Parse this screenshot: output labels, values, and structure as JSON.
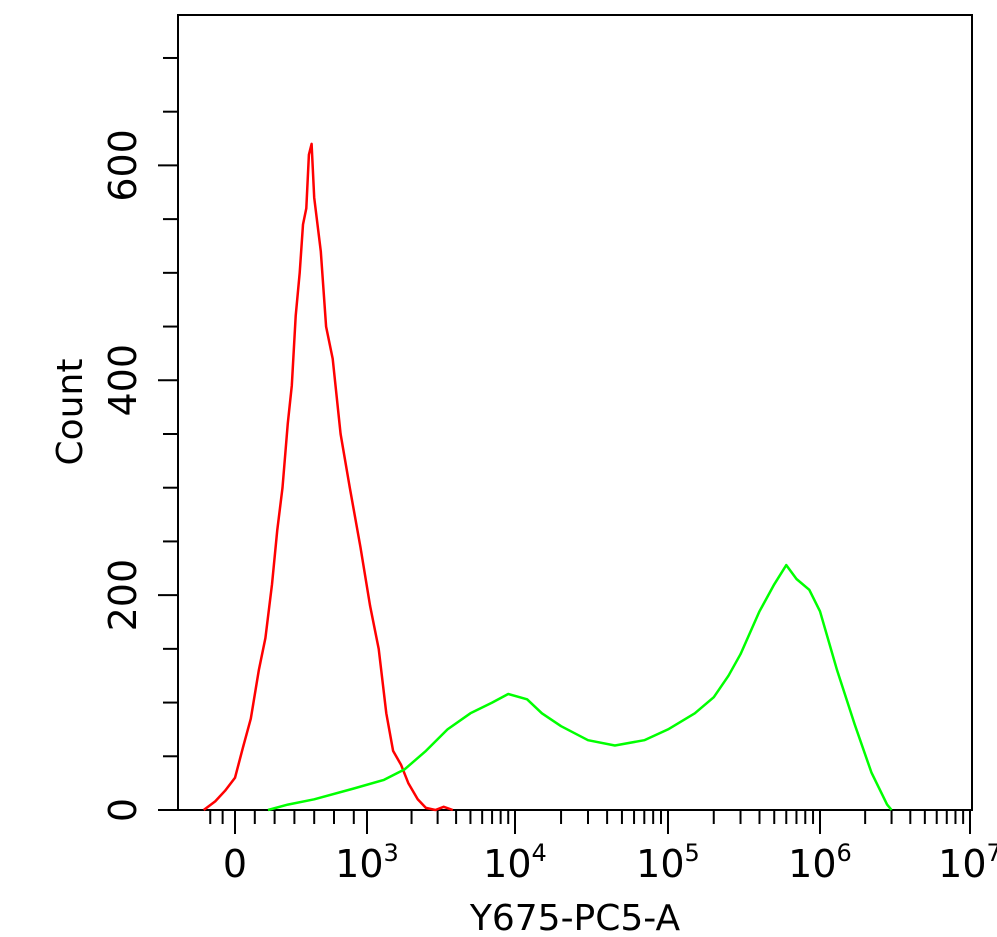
{
  "chart_data": {
    "type": "line",
    "xlabel": "Y675-PC5-A",
    "ylabel": "Count",
    "x_scale": "biexponential",
    "xlim": [
      -200,
      10000000
    ],
    "ylim": [
      0,
      740
    ],
    "x_ticks": [
      {
        "value": 0,
        "base": "0",
        "exp": ""
      },
      {
        "value": 1000,
        "base": "10",
        "exp": "3"
      },
      {
        "value": 10000,
        "base": "10",
        "exp": "4"
      },
      {
        "value": 100000,
        "base": "10",
        "exp": "5"
      },
      {
        "value": 1000000,
        "base": "10",
        "exp": "6"
      },
      {
        "value": 10000000,
        "base": "10",
        "exp": "7"
      }
    ],
    "y_ticks": [
      {
        "value": 0,
        "label": "0"
      },
      {
        "value": 200,
        "label": "200"
      },
      {
        "value": 400,
        "label": "400"
      },
      {
        "value": 600,
        "label": "600"
      }
    ],
    "grid": false,
    "series": [
      {
        "color": "#ff0000",
        "x": [
          -190,
          -120,
          -60,
          0,
          60,
          120,
          180,
          230,
          280,
          320,
          360,
          400,
          430,
          460,
          490,
          515,
          540,
          560,
          580,
          600,
          625,
          650,
          690,
          740,
          800,
          870,
          950,
          1050,
          1200,
          1350,
          1500,
          1700,
          1900,
          2200,
          2500,
          2900,
          3300,
          3800
        ],
        "y": [
          0,
          8,
          18,
          30,
          58,
          85,
          130,
          160,
          210,
          260,
          300,
          360,
          395,
          460,
          500,
          545,
          560,
          610,
          620,
          570,
          545,
          520,
          450,
          420,
          350,
          300,
          245,
          190,
          150,
          90,
          55,
          42,
          25,
          10,
          2,
          0,
          3,
          0
        ]
      },
      {
        "color": "#00ff00",
        "x": [
          250,
          400,
          600,
          900,
          1300,
          1800,
          2500,
          3500,
          5000,
          7000,
          9000,
          12000,
          15000,
          20000,
          30000,
          45000,
          70000,
          100000,
          150000,
          200000,
          250000,
          300000,
          400000,
          500000,
          600000,
          700000,
          850000,
          1000000,
          1300000,
          1700000,
          2200000,
          2800000,
          3000000
        ],
        "y": [
          0,
          5,
          10,
          20,
          28,
          38,
          55,
          75,
          90,
          100,
          108,
          103,
          90,
          78,
          65,
          60,
          65,
          75,
          90,
          105,
          125,
          145,
          185,
          210,
          228,
          215,
          205,
          185,
          130,
          80,
          35,
          5,
          0
        ]
      }
    ]
  }
}
